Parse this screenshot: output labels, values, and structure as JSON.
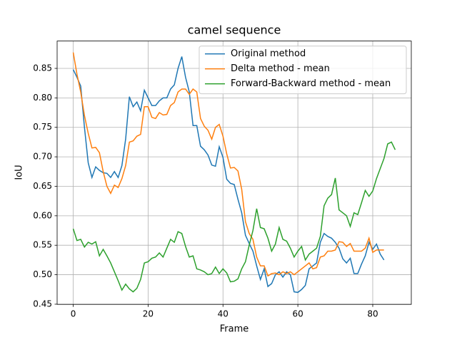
{
  "chart_data": {
    "type": "line",
    "title": "camel sequence",
    "x_label": "Frame",
    "y_label": "IoU",
    "xlim": [
      -4.3,
      90.3
    ],
    "ylim": [
      0.4497,
      0.8964
    ],
    "xticks": [
      0,
      20,
      40,
      60,
      80
    ],
    "yticks": [
      0.45,
      {
        "value": 0.5,
        "label": "0.50"
      },
      0.55,
      {
        "value": 0.6,
        "label": "0.60"
      },
      0.65,
      {
        "value": 0.7,
        "label": "0.70"
      },
      0.75,
      {
        "value": 0.8,
        "label": "0.80"
      },
      0.85
    ],
    "grid": true,
    "legend": "upper right",
    "series": [
      {
        "name": "Original method",
        "color": "#1f77b4",
        "x": [
          0,
          1,
          2,
          3,
          4,
          5,
          6,
          7,
          8,
          9,
          10,
          11,
          12,
          13,
          14,
          15,
          16,
          17,
          18,
          19,
          20,
          21,
          22,
          23,
          24,
          25,
          26,
          27,
          28,
          29,
          30,
          31,
          32,
          33,
          34,
          35,
          36,
          37,
          38,
          39,
          40,
          41,
          42,
          43,
          44,
          45,
          46,
          47,
          48,
          49,
          50,
          51,
          52,
          53,
          54,
          55,
          56,
          57,
          58,
          59,
          60,
          61,
          62,
          63,
          64,
          65,
          66,
          67,
          68,
          69,
          70,
          71,
          72,
          73,
          74,
          75,
          76,
          77,
          78,
          79,
          80,
          81,
          82,
          83
        ],
        "values": [
          0.848,
          0.835,
          0.82,
          0.75,
          0.69,
          0.665,
          0.683,
          0.677,
          0.673,
          0.672,
          0.665,
          0.675,
          0.665,
          0.685,
          0.73,
          0.802,
          0.785,
          0.793,
          0.778,
          0.813,
          0.8,
          0.787,
          0.787,
          0.795,
          0.8,
          0.8,
          0.815,
          0.822,
          0.85,
          0.87,
          0.835,
          0.81,
          0.753,
          0.753,
          0.718,
          0.712,
          0.703,
          0.686,
          0.684,
          0.717,
          0.699,
          0.662,
          0.655,
          0.653,
          0.628,
          0.605,
          0.567,
          0.553,
          0.54,
          0.515,
          0.492,
          0.51,
          0.48,
          0.485,
          0.5,
          0.505,
          0.496,
          0.505,
          0.5,
          0.471,
          0.47,
          0.475,
          0.482,
          0.51,
          0.515,
          0.52,
          0.555,
          0.57,
          0.565,
          0.562,
          0.555,
          0.545,
          0.527,
          0.52,
          0.528,
          0.502,
          0.502,
          0.518,
          0.532,
          0.555,
          0.543,
          0.552,
          0.535,
          0.525
        ]
      },
      {
        "name": "Delta method - mean",
        "color": "#ff7f0e",
        "x": [
          0,
          1,
          2,
          3,
          4,
          5,
          6,
          7,
          8,
          9,
          10,
          11,
          12,
          13,
          14,
          15,
          16,
          17,
          18,
          19,
          20,
          21,
          22,
          23,
          24,
          25,
          26,
          27,
          28,
          29,
          30,
          31,
          32,
          33,
          34,
          35,
          36,
          37,
          38,
          39,
          40,
          41,
          42,
          43,
          44,
          45,
          46,
          47,
          48,
          49,
          50,
          51,
          52,
          53,
          54,
          55,
          56,
          57,
          58,
          59,
          60,
          61,
          62,
          63,
          64,
          65,
          66,
          67,
          68,
          69,
          70,
          71,
          72,
          73,
          74,
          75,
          76,
          77,
          78,
          79,
          80,
          81,
          82,
          83
        ],
        "values": [
          0.877,
          0.84,
          0.81,
          0.77,
          0.74,
          0.715,
          0.716,
          0.707,
          0.675,
          0.65,
          0.638,
          0.652,
          0.648,
          0.663,
          0.685,
          0.725,
          0.727,
          0.735,
          0.738,
          0.785,
          0.785,
          0.767,
          0.765,
          0.775,
          0.771,
          0.772,
          0.787,
          0.792,
          0.81,
          0.815,
          0.815,
          0.806,
          0.815,
          0.81,
          0.765,
          0.752,
          0.745,
          0.73,
          0.75,
          0.755,
          0.735,
          0.705,
          0.681,
          0.682,
          0.676,
          0.645,
          0.59,
          0.57,
          0.56,
          0.53,
          0.515,
          0.515,
          0.498,
          0.502,
          0.503,
          0.5,
          0.505,
          0.502,
          0.505,
          0.5,
          0.505,
          0.51,
          0.515,
          0.52,
          0.51,
          0.512,
          0.53,
          0.532,
          0.54,
          0.54,
          0.542,
          0.556,
          0.555,
          0.548,
          0.553,
          0.54,
          0.54,
          0.54,
          0.545,
          0.562,
          0.538,
          0.542,
          0.542,
          0.542
        ]
      },
      {
        "name": "Forward-Backward method - mean",
        "color": "#2ca02c",
        "x": [
          0,
          1,
          2,
          3,
          4,
          5,
          6,
          7,
          8,
          9,
          10,
          11,
          12,
          13,
          14,
          15,
          16,
          17,
          18,
          19,
          20,
          21,
          22,
          23,
          24,
          25,
          26,
          27,
          28,
          29,
          30,
          31,
          32,
          33,
          34,
          35,
          36,
          37,
          38,
          39,
          40,
          41,
          42,
          43,
          44,
          45,
          46,
          47,
          48,
          49,
          50,
          51,
          52,
          53,
          54,
          55,
          56,
          57,
          58,
          59,
          60,
          61,
          62,
          63,
          64,
          65,
          66,
          67,
          68,
          69,
          70,
          71,
          72,
          73,
          74,
          75,
          76,
          77,
          78,
          79,
          80,
          81,
          82,
          83,
          84,
          85,
          86
        ],
        "values": [
          0.578,
          0.558,
          0.56,
          0.547,
          0.555,
          0.552,
          0.556,
          0.532,
          0.543,
          0.532,
          0.52,
          0.505,
          0.49,
          0.474,
          0.484,
          0.476,
          0.471,
          0.477,
          0.492,
          0.52,
          0.522,
          0.528,
          0.53,
          0.537,
          0.53,
          0.545,
          0.56,
          0.555,
          0.573,
          0.57,
          0.548,
          0.53,
          0.532,
          0.51,
          0.508,
          0.505,
          0.5,
          0.502,
          0.513,
          0.502,
          0.51,
          0.503,
          0.488,
          0.489,
          0.493,
          0.51,
          0.522,
          0.55,
          0.575,
          0.612,
          0.58,
          0.578,
          0.562,
          0.54,
          0.552,
          0.58,
          0.56,
          0.557,
          0.545,
          0.53,
          0.54,
          0.548,
          0.525,
          0.535,
          0.54,
          0.545,
          0.565,
          0.617,
          0.63,
          0.636,
          0.664,
          0.61,
          0.605,
          0.6,
          0.582,
          0.605,
          0.602,
          0.622,
          0.643,
          0.633,
          0.642,
          0.663,
          0.68,
          0.697,
          0.722,
          0.725,
          0.712
        ]
      }
    ]
  }
}
